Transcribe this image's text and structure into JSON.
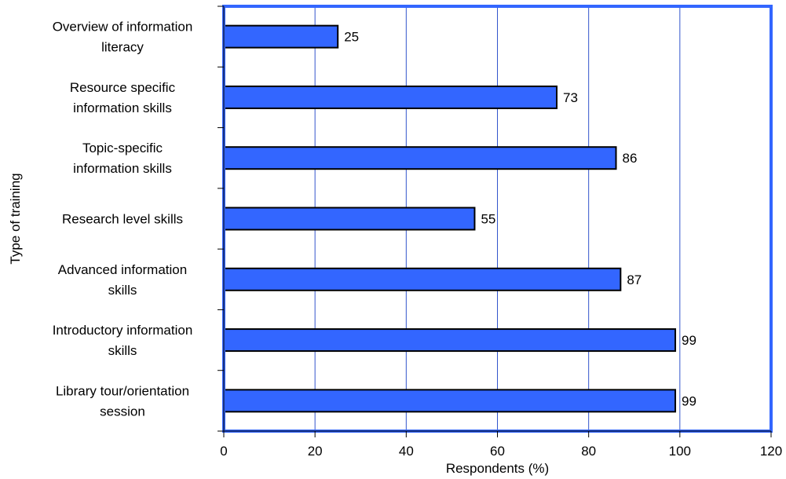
{
  "chart_data": {
    "type": "bar",
    "orientation": "horizontal",
    "categories": [
      [
        "Overview of information",
        "literacy"
      ],
      [
        "Resource specific",
        "information skills"
      ],
      [
        "Topic-specific",
        "information skills"
      ],
      [
        "Research level skills"
      ],
      [
        "Advanced information",
        "skills"
      ],
      [
        "Introductory information",
        "skills"
      ],
      [
        "Library tour/orientation",
        "session"
      ]
    ],
    "values": [
      25,
      73,
      86,
      55,
      87,
      99,
      99
    ],
    "xlabel": "Respondents (%)",
    "ylabel": "Type of training",
    "xlim": [
      0,
      120
    ],
    "xticks": [
      0,
      20,
      40,
      60,
      80,
      100,
      120
    ],
    "grid": true,
    "bar_color": "#3366FF",
    "frame_color": "#3366FF",
    "grid_color": "#3355CC"
  }
}
